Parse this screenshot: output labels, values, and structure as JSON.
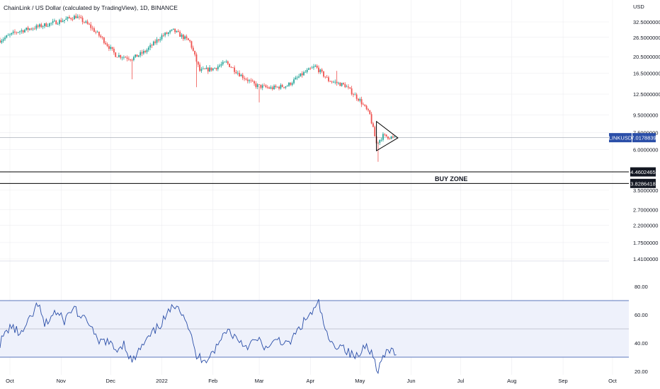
{
  "chart_data": [
    {
      "type": "candlestick",
      "title": "ChainLink / US Dollar (calculated by TradingView), 1D, BINANCE",
      "currency_label": "USD",
      "scale": "log",
      "ylim": [
        1.38,
        36
      ],
      "y_ticks": [
        "32.5000000",
        "26.5000000",
        "20.5000000",
        "16.5000000",
        "12.5000000",
        "9.5000000",
        "7.5000000",
        "6.0000000",
        "3.5000000",
        "2.7000000",
        "2.2000000",
        "1.7500000",
        "1.4100000"
      ],
      "y_tick_values": [
        32.5,
        26.5,
        20.5,
        16.5,
        12.5,
        9.5,
        7.5,
        6.0,
        3.5,
        2.7,
        2.2,
        1.75,
        1.41
      ],
      "colors": {
        "up": "#26a69a",
        "down": "#ef5350",
        "price_tag": "#2a4ea8",
        "rsi_line": "#2a4ea8",
        "rsi_band": "#eef1fb",
        "lines": "#000000",
        "grid": "#e9e9ee"
      },
      "price_tag": {
        "symbol": "LINKUSD",
        "value": 7.0178839,
        "value_label": "7.0178839"
      },
      "levels": [
        {
          "value": 4.4602465,
          "label": "4.4602465"
        },
        {
          "value": 3.8286418,
          "label": "3.8286418"
        }
      ],
      "zone_label": "BUY ZONE",
      "path_points": [
        {
          "date": "2021-09-25",
          "close": 25.5
        },
        {
          "date": "2021-10-05",
          "close": 28.5
        },
        {
          "date": "2021-10-18",
          "close": 30.5
        },
        {
          "date": "2021-11-01",
          "close": 33.0
        },
        {
          "date": "2021-11-10",
          "close": 35.0
        },
        {
          "date": "2021-11-18",
          "close": 31.0
        },
        {
          "date": "2021-11-26",
          "close": 26.0
        },
        {
          "date": "2021-12-04",
          "close": 21.0
        },
        {
          "date": "2021-12-14",
          "close": 20.0
        },
        {
          "date": "2021-12-22",
          "close": 22.0
        },
        {
          "date": "2022-01-01",
          "close": 27.0
        },
        {
          "date": "2022-01-08",
          "close": 29.0
        },
        {
          "date": "2022-01-18",
          "close": 25.0
        },
        {
          "date": "2022-01-24",
          "close": 17.0
        },
        {
          "date": "2022-02-01",
          "close": 17.5
        },
        {
          "date": "2022-02-09",
          "close": 19.0
        },
        {
          "date": "2022-02-18",
          "close": 16.0
        },
        {
          "date": "2022-02-27",
          "close": 14.0
        },
        {
          "date": "2022-03-08",
          "close": 13.5
        },
        {
          "date": "2022-03-18",
          "close": 14.0
        },
        {
          "date": "2022-03-28",
          "close": 16.5
        },
        {
          "date": "2022-04-04",
          "close": 18.0
        },
        {
          "date": "2022-04-12",
          "close": 15.0
        },
        {
          "date": "2022-04-22",
          "close": 14.0
        },
        {
          "date": "2022-05-01",
          "close": 11.5
        },
        {
          "date": "2022-05-07",
          "close": 9.5
        },
        {
          "date": "2022-05-11",
          "close": 6.5
        },
        {
          "date": "2022-05-15",
          "close": 7.2
        },
        {
          "date": "2022-05-22",
          "close": 7.0
        }
      ],
      "triangle": [
        {
          "date": "2022-05-11",
          "price": 8.7
        },
        {
          "date": "2022-05-24",
          "price": 7.0
        },
        {
          "date": "2022-05-11",
          "price": 5.9
        }
      ]
    },
    {
      "type": "line",
      "y_ticks": [
        "80.00",
        "60.00",
        "40.00",
        "20.00"
      ],
      "y_tick_values": [
        80,
        60,
        40,
        20
      ],
      "ylim": [
        18,
        88
      ],
      "band": [
        30,
        70
      ],
      "midline": 50,
      "points": [
        {
          "date": "2021-09-25",
          "value": 40
        },
        {
          "date": "2021-10-01",
          "value": 52
        },
        {
          "date": "2021-10-08",
          "value": 46
        },
        {
          "date": "2021-10-14",
          "value": 58
        },
        {
          "date": "2021-10-18",
          "value": 68
        },
        {
          "date": "2021-10-22",
          "value": 52
        },
        {
          "date": "2021-10-28",
          "value": 62
        },
        {
          "date": "2021-11-03",
          "value": 56
        },
        {
          "date": "2021-11-09",
          "value": 66
        },
        {
          "date": "2021-11-13",
          "value": 57
        },
        {
          "date": "2021-11-18",
          "value": 55
        },
        {
          "date": "2021-11-23",
          "value": 40
        },
        {
          "date": "2021-11-28",
          "value": 42
        },
        {
          "date": "2021-12-04",
          "value": 35
        },
        {
          "date": "2021-12-09",
          "value": 40
        },
        {
          "date": "2021-12-14",
          "value": 26
        },
        {
          "date": "2021-12-19",
          "value": 36
        },
        {
          "date": "2021-12-26",
          "value": 46
        },
        {
          "date": "2022-01-02",
          "value": 56
        },
        {
          "date": "2022-01-07",
          "value": 64
        },
        {
          "date": "2022-01-10",
          "value": 69
        },
        {
          "date": "2022-01-16",
          "value": 56
        },
        {
          "date": "2022-01-22",
          "value": 30
        },
        {
          "date": "2022-01-28",
          "value": 29
        },
        {
          "date": "2022-02-04",
          "value": 38
        },
        {
          "date": "2022-02-09",
          "value": 50
        },
        {
          "date": "2022-02-15",
          "value": 44
        },
        {
          "date": "2022-02-21",
          "value": 38
        },
        {
          "date": "2022-02-28",
          "value": 42
        },
        {
          "date": "2022-03-07",
          "value": 35
        },
        {
          "date": "2022-03-12",
          "value": 44
        },
        {
          "date": "2022-03-18",
          "value": 38
        },
        {
          "date": "2022-03-24",
          "value": 48
        },
        {
          "date": "2022-03-30",
          "value": 58
        },
        {
          "date": "2022-04-04",
          "value": 64
        },
        {
          "date": "2022-04-06",
          "value": 68
        },
        {
          "date": "2022-04-11",
          "value": 45
        },
        {
          "date": "2022-04-15",
          "value": 37
        },
        {
          "date": "2022-04-19",
          "value": 40
        },
        {
          "date": "2022-04-25",
          "value": 32
        },
        {
          "date": "2022-04-30",
          "value": 30
        },
        {
          "date": "2022-05-05",
          "value": 41
        },
        {
          "date": "2022-05-09",
          "value": 30
        },
        {
          "date": "2022-05-12",
          "value": 21
        },
        {
          "date": "2022-05-15",
          "value": 30
        },
        {
          "date": "2022-05-20",
          "value": 35
        },
        {
          "date": "2022-05-23",
          "value": 33
        }
      ]
    }
  ],
  "x_axis": {
    "ticks": [
      {
        "date": "2021-10-01",
        "label": "Oct"
      },
      {
        "date": "2021-11-01",
        "label": "Nov"
      },
      {
        "date": "2021-12-01",
        "label": "Dec"
      },
      {
        "date": "2022-01-01",
        "label": "2022"
      },
      {
        "date": "2022-02-01",
        "label": "Feb"
      },
      {
        "date": "2022-03-01",
        "label": "Mar"
      },
      {
        "date": "2022-04-01",
        "label": "Apr"
      },
      {
        "date": "2022-05-01",
        "label": "May"
      },
      {
        "date": "2022-06-01",
        "label": "Jun"
      },
      {
        "date": "2022-07-01",
        "label": "Jul"
      },
      {
        "date": "2022-08-01",
        "label": "Aug"
      },
      {
        "date": "2022-09-01",
        "label": "Sep"
      },
      {
        "date": "2022-10-01",
        "label": "Oct"
      }
    ]
  }
}
